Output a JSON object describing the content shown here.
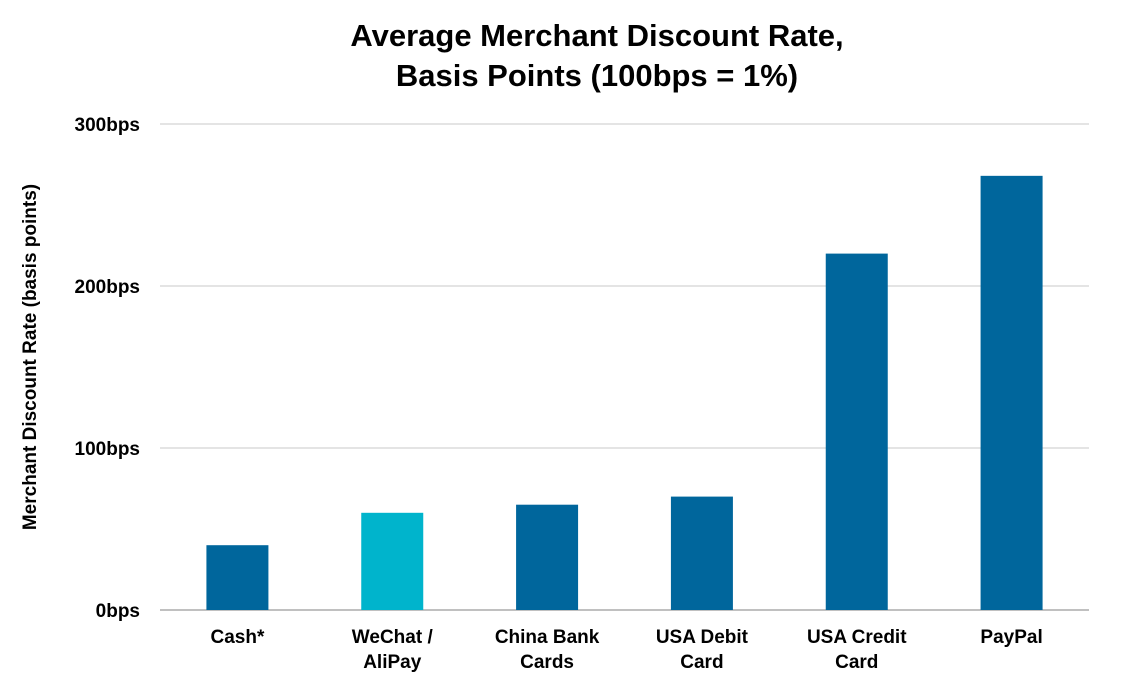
{
  "chart_data": {
    "type": "bar",
    "title_lines": [
      "Average Merchant Discount Rate,",
      "Basis Points (100bps = 1%)"
    ],
    "xlabel": "",
    "ylabel": "Merchant Discount Rate (basis points)",
    "categories": [
      [
        "Cash*"
      ],
      [
        "WeChat /",
        "AliPay"
      ],
      [
        "China Bank",
        "Cards"
      ],
      [
        "USA Debit",
        "Card"
      ],
      [
        "USA Credit",
        "Card"
      ],
      [
        "PayPal"
      ]
    ],
    "values": [
      40,
      60,
      65,
      70,
      220,
      268
    ],
    "bar_colors": [
      "#00669c",
      "#00b4cc",
      "#00669c",
      "#00669c",
      "#00669c",
      "#00669c"
    ],
    "ylim": [
      0,
      300
    ],
    "yticks": [
      0,
      100,
      200,
      300
    ],
    "ytick_labels": [
      "0bps",
      "100bps",
      "200bps",
      "300bps"
    ],
    "grid": true,
    "legend": "none"
  }
}
